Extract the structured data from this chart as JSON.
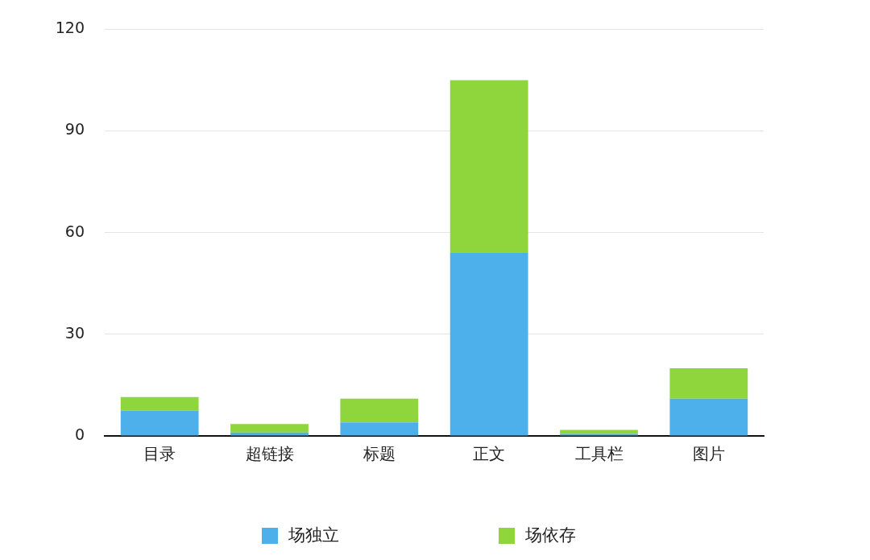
{
  "chart_data": {
    "type": "bar",
    "stacked": true,
    "categories": [
      "目录",
      "超链接",
      "标题",
      "正文",
      "工具栏",
      "图片"
    ],
    "series": [
      {
        "name": "场独立",
        "color": "#4db0ea",
        "values": [
          7.5,
          1,
          4,
          54,
          0.6,
          11
        ]
      },
      {
        "name": "场依存",
        "color": "#8ed63c",
        "values": [
          4,
          2.5,
          7,
          51,
          1.2,
          9
        ]
      }
    ],
    "ylim": [
      0,
      120
    ],
    "yticks": [
      0,
      30,
      60,
      90,
      120
    ],
    "grid": "y",
    "legend": "bottom"
  }
}
